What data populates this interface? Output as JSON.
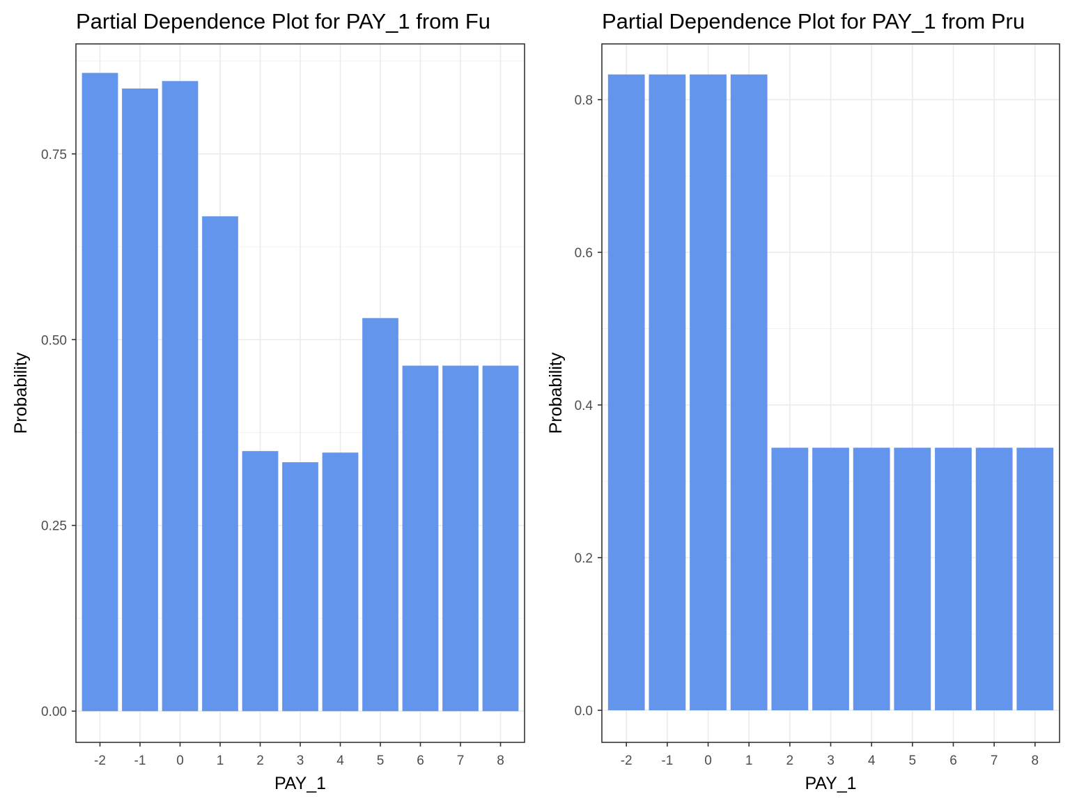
{
  "chart_data": [
    {
      "type": "bar",
      "title": "Partial Dependence Plot for PAY_1 from Fu",
      "xlabel": "PAY_1",
      "ylabel": "Probability",
      "categories": [
        "-2",
        "-1",
        "0",
        "1",
        "2",
        "3",
        "4",
        "5",
        "6",
        "7",
        "8"
      ],
      "values": [
        0.859,
        0.838,
        0.848,
        0.666,
        0.35,
        0.335,
        0.348,
        0.529,
        0.465,
        0.465,
        0.465
      ],
      "ylim": [
        -0.042,
        0.898
      ],
      "yticks": [
        0.0,
        0.25,
        0.5,
        0.75
      ],
      "ytick_labels": [
        "0.00",
        "0.25",
        "0.50",
        "0.75"
      ],
      "grid": true,
      "bar_color": "#6495ED"
    },
    {
      "type": "bar",
      "title": "Partial Dependence Plot for PAY_1 from Pru",
      "xlabel": "PAY_1",
      "ylabel": "Probability",
      "categories": [
        "-2",
        "-1",
        "0",
        "1",
        "2",
        "3",
        "4",
        "5",
        "6",
        "7",
        "8"
      ],
      "values": [
        0.833,
        0.833,
        0.833,
        0.833,
        0.344,
        0.344,
        0.344,
        0.344,
        0.344,
        0.344,
        0.344
      ],
      "ylim": [
        -0.042,
        0.873
      ],
      "yticks": [
        0.0,
        0.2,
        0.4,
        0.6,
        0.8
      ],
      "ytick_labels": [
        "0.0",
        "0.2",
        "0.4",
        "0.6",
        "0.8"
      ],
      "grid": true,
      "bar_color": "#6495ED"
    }
  ]
}
